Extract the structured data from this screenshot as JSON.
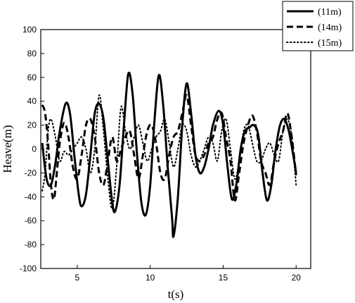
{
  "chart_data": {
    "type": "line",
    "title": "",
    "xlabel": "t(s)",
    "ylabel": "Heave(m)",
    "xlim": [
      2.5,
      21
    ],
    "ylim": [
      -100,
      100
    ],
    "xticks": [
      5,
      10,
      15,
      20
    ],
    "yticks": [
      -100,
      -80,
      -60,
      -40,
      -20,
      0,
      20,
      40,
      60,
      80,
      100
    ],
    "grid": false,
    "legend_position": "top-right",
    "series": [
      {
        "name": "(11m)",
        "style": "solid",
        "color": "#000000",
        "points": [
          [
            2.6,
            5
          ],
          [
            2.9,
            -25
          ],
          [
            3.2,
            -30
          ],
          [
            3.5,
            -12
          ],
          [
            3.8,
            15
          ],
          [
            4.2,
            38
          ],
          [
            4.5,
            30
          ],
          [
            4.8,
            -5
          ],
          [
            5.1,
            -38
          ],
          [
            5.3,
            -48
          ],
          [
            5.6,
            -38
          ],
          [
            5.9,
            -5
          ],
          [
            6.2,
            30
          ],
          [
            6.5,
            38
          ],
          [
            6.8,
            25
          ],
          [
            7.1,
            -10
          ],
          [
            7.4,
            -45
          ],
          [
            7.6,
            -52
          ],
          [
            7.9,
            -30
          ],
          [
            8.2,
            20
          ],
          [
            8.5,
            63
          ],
          [
            8.8,
            45
          ],
          [
            9.1,
            -5
          ],
          [
            9.4,
            -45
          ],
          [
            9.7,
            -55
          ],
          [
            10.0,
            -30
          ],
          [
            10.3,
            25
          ],
          [
            10.6,
            62
          ],
          [
            10.9,
            35
          ],
          [
            11.2,
            -15
          ],
          [
            11.5,
            -58
          ],
          [
            11.6,
            -73
          ],
          [
            11.9,
            -40
          ],
          [
            12.2,
            20
          ],
          [
            12.5,
            55
          ],
          [
            12.8,
            30
          ],
          [
            13.1,
            -5
          ],
          [
            13.4,
            -20
          ],
          [
            13.7,
            -15
          ],
          [
            14.0,
            0
          ],
          [
            14.3,
            20
          ],
          [
            14.7,
            32
          ],
          [
            15.0,
            20
          ],
          [
            15.3,
            -15
          ],
          [
            15.6,
            -42
          ],
          [
            15.9,
            -30
          ],
          [
            16.2,
            0
          ],
          [
            16.5,
            15
          ],
          [
            16.8,
            18
          ],
          [
            17.1,
            20
          ],
          [
            17.4,
            12
          ],
          [
            17.7,
            -20
          ],
          [
            18.0,
            -43
          ],
          [
            18.3,
            -30
          ],
          [
            18.6,
            0
          ],
          [
            18.9,
            20
          ],
          [
            19.2,
            25
          ],
          [
            19.5,
            15
          ],
          [
            19.8,
            -5
          ],
          [
            20.0,
            -20
          ]
        ]
      },
      {
        "name": "(14m)",
        "style": "dashed",
        "color": "#000000",
        "points": [
          [
            2.6,
            37
          ],
          [
            2.8,
            30
          ],
          [
            3.0,
            5
          ],
          [
            3.2,
            -30
          ],
          [
            3.4,
            -42
          ],
          [
            3.6,
            -20
          ],
          [
            3.8,
            5
          ],
          [
            4.1,
            22
          ],
          [
            4.4,
            10
          ],
          [
            4.7,
            -15
          ],
          [
            5.0,
            -25
          ],
          [
            5.3,
            -5
          ],
          [
            5.6,
            20
          ],
          [
            5.9,
            25
          ],
          [
            6.2,
            10
          ],
          [
            6.5,
            -20
          ],
          [
            6.8,
            -30
          ],
          [
            7.1,
            -10
          ],
          [
            7.4,
            10
          ],
          [
            7.7,
            -10
          ],
          [
            8.0,
            0
          ],
          [
            8.3,
            10
          ],
          [
            8.6,
            15
          ],
          [
            8.9,
            -5
          ],
          [
            9.2,
            -25
          ],
          [
            9.5,
            -5
          ],
          [
            9.8,
            15
          ],
          [
            10.1,
            20
          ],
          [
            10.4,
            5
          ],
          [
            10.7,
            -20
          ],
          [
            11.0,
            -25
          ],
          [
            11.3,
            -5
          ],
          [
            11.6,
            10
          ],
          [
            11.9,
            15
          ],
          [
            12.2,
            30
          ],
          [
            12.5,
            45
          ],
          [
            12.8,
            20
          ],
          [
            13.1,
            -5
          ],
          [
            13.4,
            -10
          ],
          [
            13.7,
            -5
          ],
          [
            14.0,
            5
          ],
          [
            14.3,
            10
          ],
          [
            14.6,
            25
          ],
          [
            14.9,
            30
          ],
          [
            15.2,
            10
          ],
          [
            15.5,
            -10
          ],
          [
            15.8,
            -43
          ],
          [
            16.1,
            -20
          ],
          [
            16.4,
            5
          ],
          [
            16.7,
            20
          ],
          [
            17.0,
            28
          ],
          [
            17.3,
            15
          ],
          [
            17.6,
            -10
          ],
          [
            17.9,
            -20
          ],
          [
            18.2,
            -30
          ],
          [
            18.5,
            -10
          ],
          [
            18.8,
            5
          ],
          [
            19.1,
            15
          ],
          [
            19.4,
            30
          ],
          [
            19.7,
            10
          ],
          [
            20.0,
            -22
          ]
        ]
      },
      {
        "name": "(15m)",
        "style": "dotted",
        "color": "#000000",
        "points": [
          [
            2.6,
            -35
          ],
          [
            2.8,
            -20
          ],
          [
            3.0,
            15
          ],
          [
            3.2,
            25
          ],
          [
            3.5,
            10
          ],
          [
            3.8,
            -10
          ],
          [
            4.1,
            -2
          ],
          [
            4.4,
            -5
          ],
          [
            4.7,
            0
          ],
          [
            5.0,
            5
          ],
          [
            5.3,
            10
          ],
          [
            5.6,
            0
          ],
          [
            5.9,
            -20
          ],
          [
            6.2,
            0
          ],
          [
            6.5,
            45
          ],
          [
            6.8,
            15
          ],
          [
            7.1,
            -25
          ],
          [
            7.4,
            -50
          ],
          [
            7.7,
            -15
          ],
          [
            8.0,
            35
          ],
          [
            8.3,
            15
          ],
          [
            8.6,
            0
          ],
          [
            8.9,
            10
          ],
          [
            9.2,
            20
          ],
          [
            9.5,
            5
          ],
          [
            9.8,
            -10
          ],
          [
            10.1,
            0
          ],
          [
            10.4,
            10
          ],
          [
            10.7,
            15
          ],
          [
            11.0,
            25
          ],
          [
            11.3,
            5
          ],
          [
            11.6,
            -15
          ],
          [
            11.9,
            0
          ],
          [
            12.2,
            20
          ],
          [
            12.5,
            15
          ],
          [
            12.8,
            -5
          ],
          [
            13.1,
            -15
          ],
          [
            13.4,
            -10
          ],
          [
            13.7,
            0
          ],
          [
            14.0,
            10
          ],
          [
            14.3,
            5
          ],
          [
            14.6,
            -10
          ],
          [
            14.9,
            15
          ],
          [
            15.2,
            25
          ],
          [
            15.5,
            0
          ],
          [
            15.8,
            -25
          ],
          [
            16.1,
            -10
          ],
          [
            16.4,
            15
          ],
          [
            16.7,
            20
          ],
          [
            17.0,
            5
          ],
          [
            17.3,
            -10
          ],
          [
            17.6,
            -10
          ],
          [
            17.9,
            0
          ],
          [
            18.2,
            5
          ],
          [
            18.5,
            -5
          ],
          [
            18.8,
            -10
          ],
          [
            19.1,
            15
          ],
          [
            19.4,
            25
          ],
          [
            19.7,
            10
          ],
          [
            20.0,
            -30
          ]
        ]
      }
    ]
  }
}
